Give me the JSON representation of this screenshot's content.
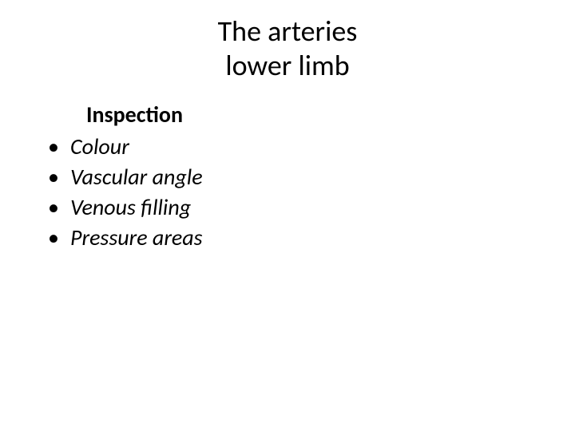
{
  "title": {
    "line1": "The arteries",
    "line2": "lower limb",
    "fontsize": 36,
    "color": "#000000"
  },
  "subheading": {
    "text": "Inspection",
    "fontsize": 28,
    "fontweight": "bold",
    "color": "#000000"
  },
  "bullets": {
    "items": [
      {
        "label": "Colour"
      },
      {
        "label": "Vascular angle"
      },
      {
        "label": "Venous filling"
      },
      {
        "label": "Pressure areas"
      }
    ],
    "fontsize": 28,
    "fontstyle": "italic",
    "bullet_char": "•",
    "color": "#000000"
  },
  "background_color": "#ffffff"
}
